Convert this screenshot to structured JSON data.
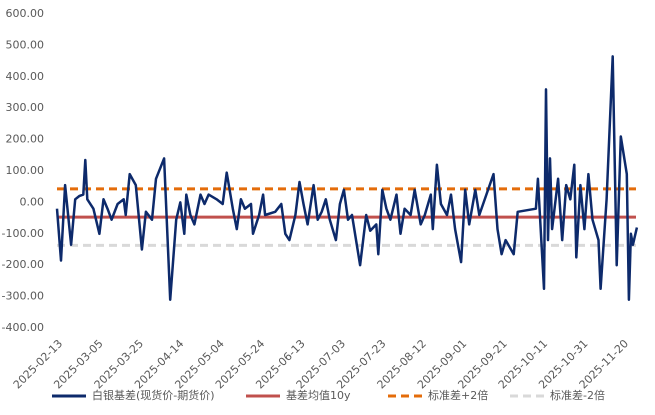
{
  "chart_data": {
    "type": "line",
    "x": [
      "2025-02-13",
      "2025-02-15",
      "2025-02-17",
      "2025-02-20",
      "2025-02-22",
      "2025-02-24",
      "2025-02-26",
      "2025-02-27",
      "2025-02-28",
      "2025-03-03",
      "2025-03-06",
      "2025-03-08",
      "2025-03-10",
      "2025-03-12",
      "2025-03-15",
      "2025-03-18",
      "2025-03-19",
      "2025-03-21",
      "2025-03-24",
      "2025-03-27",
      "2025-03-29",
      "2025-04-01",
      "2025-04-03",
      "2025-04-07",
      "2025-04-10",
      "2025-04-13",
      "2025-04-15",
      "2025-04-17",
      "2025-04-18",
      "2025-04-20",
      "2025-04-22",
      "2025-04-25",
      "2025-04-27",
      "2025-04-29",
      "2025-05-03",
      "2025-05-06",
      "2025-05-08",
      "2025-05-11",
      "2025-05-13",
      "2025-05-15",
      "2025-05-17",
      "2025-05-20",
      "2025-05-21",
      "2025-05-24",
      "2025-05-26",
      "2025-05-27",
      "2025-06-01",
      "2025-06-04",
      "2025-06-06",
      "2025-06-08",
      "2025-06-11",
      "2025-06-13",
      "2025-06-15",
      "2025-06-17",
      "2025-06-20",
      "2025-06-22",
      "2025-06-24",
      "2025-06-26",
      "2025-06-28",
      "2025-07-01",
      "2025-07-03",
      "2025-07-05",
      "2025-07-07",
      "2025-07-09",
      "2025-07-13",
      "2025-07-16",
      "2025-07-18",
      "2025-07-21",
      "2025-07-22",
      "2025-07-24",
      "2025-07-26",
      "2025-07-28",
      "2025-07-31",
      "2025-08-02",
      "2025-08-04",
      "2025-08-07",
      "2025-08-09",
      "2025-08-12",
      "2025-08-14",
      "2025-08-17",
      "2025-08-18",
      "2025-08-20",
      "2025-08-22",
      "2025-08-25",
      "2025-08-27",
      "2025-08-29",
      "2025-09-01",
      "2025-09-03",
      "2025-09-05",
      "2025-09-08",
      "2025-09-10",
      "2025-09-17",
      "2025-09-19",
      "2025-09-21",
      "2025-09-23",
      "2025-09-27",
      "2025-09-29",
      "2025-10-08",
      "2025-10-09",
      "2025-10-12",
      "2025-10-13",
      "2025-10-14",
      "2025-10-15",
      "2025-10-16",
      "2025-10-19",
      "2025-10-21",
      "2025-10-23",
      "2025-10-25",
      "2025-10-27",
      "2025-10-28",
      "2025-10-30",
      "2025-11-01",
      "2025-11-03",
      "2025-11-05",
      "2025-11-08",
      "2025-11-09",
      "2025-11-11",
      "2025-11-12",
      "2025-11-15",
      "2025-11-17",
      "2025-11-19",
      "2025-11-22",
      "2025-11-23",
      "2025-11-24",
      "2025-11-25",
      "2025-11-27"
    ],
    "series": [
      {
        "name": "白银基差(现货价-期货价)",
        "color": "#0d2a6b",
        "values": [
          -20,
          -185,
          55,
          -135,
          10,
          20,
          25,
          135,
          10,
          -20,
          -100,
          10,
          -20,
          -55,
          -5,
          10,
          -40,
          90,
          55,
          -150,
          -30,
          -55,
          75,
          140,
          -310,
          -55,
          0,
          -100,
          25,
          -40,
          -70,
          25,
          -5,
          25,
          10,
          -5,
          95,
          -20,
          -85,
          10,
          -20,
          -5,
          -100,
          -40,
          25,
          -40,
          -30,
          -5,
          -100,
          -120,
          -40,
          65,
          -5,
          -70,
          55,
          -55,
          -30,
          10,
          -55,
          -120,
          -5,
          40,
          -55,
          -40,
          -200,
          -40,
          -90,
          -70,
          -165,
          40,
          -20,
          -55,
          25,
          -100,
          -20,
          -40,
          40,
          -70,
          -40,
          25,
          -85,
          120,
          -5,
          -40,
          25,
          -85,
          -190,
          40,
          -70,
          40,
          -40,
          90,
          -85,
          -165,
          -120,
          -165,
          -30,
          -20,
          75,
          -275,
          360,
          -120,
          140,
          -85,
          75,
          -120,
          55,
          10,
          120,
          -175,
          55,
          -85,
          90,
          -55,
          -120,
          -275,
          -85,
          10,
          465,
          -200,
          210,
          90,
          -310,
          -100,
          -135,
          -80
        ]
      }
    ],
    "reference_lines": [
      {
        "name": "基差均值10y",
        "color": "#c0504d",
        "dashed": false,
        "value": -47
      },
      {
        "name": "标准差+2倍",
        "color": "#e46c0a",
        "dashed": true,
        "value": 43
      },
      {
        "name": "标准差-2倍",
        "color": "#d9d9d9",
        "dashed": true,
        "value": -137
      }
    ],
    "xlim": [
      "2025-02-13",
      "2025-11-30"
    ],
    "xticks": [
      "2025-02-13",
      "2025-03-05",
      "2025-03-25",
      "2025-04-14",
      "2025-05-04",
      "2025-05-24",
      "2025-06-13",
      "2025-07-03",
      "2025-07-23",
      "2025-08-12",
      "2025-09-01",
      "2025-09-21",
      "2025-10-11",
      "2025-10-31",
      "2025-11-20"
    ],
    "ylim": [
      -400,
      600
    ],
    "yticks": [
      {
        "value": -400,
        "label": "-400.00"
      },
      {
        "value": -300,
        "label": "-300.00"
      },
      {
        "value": -200,
        "label": "-200.00"
      },
      {
        "value": -100,
        "label": "-100.00"
      },
      {
        "value": 0,
        "label": "0.00"
      },
      {
        "value": 100,
        "label": "100.00"
      },
      {
        "value": 200,
        "label": "200.00"
      },
      {
        "value": 300,
        "label": "300.00"
      },
      {
        "value": 400,
        "label": "400.00"
      },
      {
        "value": 500,
        "label": "500.00"
      },
      {
        "value": 600,
        "label": "600.00"
      }
    ],
    "legend": "bottom"
  }
}
